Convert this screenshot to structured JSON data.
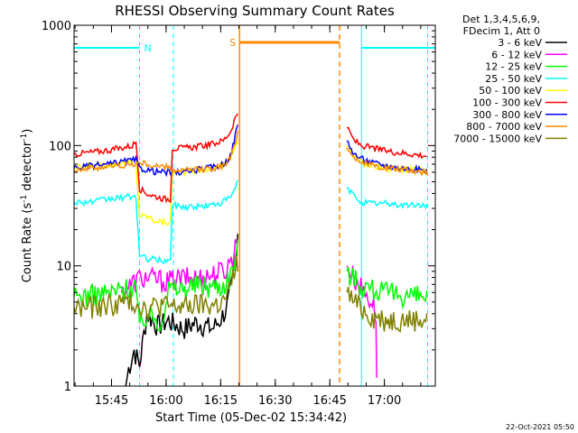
{
  "chart_data": {
    "type": "line",
    "title": "RHESSI Observing Summary Count Rates",
    "xlabel": "Start Time (05-Dec-02 15:34:42)",
    "ylabel_main": "Count Rate (s",
    "ylabel_sup1": "-1",
    "ylabel_mid": " detector",
    "ylabel_sup2": "-1",
    "ylabel_end": ")",
    "yscale": "log",
    "ylim": [
      1,
      1000
    ],
    "xlim_minutes": [
      0,
      99.3
    ],
    "x_ticks": [
      {
        "min": 10.3,
        "label": "15:45"
      },
      {
        "min": 25.3,
        "label": "16:00"
      },
      {
        "min": 40.3,
        "label": "16:15"
      },
      {
        "min": 55.3,
        "label": "16:30"
      },
      {
        "min": 70.3,
        "label": "16:45"
      },
      {
        "min": 85.3,
        "label": "17:00"
      }
    ],
    "y_ticks": [
      {
        "value": 1,
        "label": "1"
      },
      {
        "value": 10,
        "label": "10"
      },
      {
        "value": 100,
        "label": "100"
      },
      {
        "value": 1000,
        "label": "1000"
      }
    ],
    "header": [
      "Det 1,3,4,5,6,9,",
      "FDecim 1, Att 0"
    ],
    "attenuator_color": "#00ffff",
    "attenuator_segments": [
      {
        "x0": 0,
        "x1": 18.0,
        "y": 650,
        "label": "N"
      },
      {
        "x0": 79.0,
        "x1": 99.3,
        "y": 650,
        "label": ""
      }
    ],
    "attenuator_bounds": [
      0,
      18.0,
      27.3,
      79.0,
      97.2
    ],
    "saa_color": "#ff8c00",
    "saa_segment": {
      "x0": 45.5,
      "x1": 73.0,
      "y": 650,
      "label": "S"
    },
    "saa_bounds": [
      45.5,
      73.0
    ],
    "series": [
      {
        "name": "3 - 6 keV",
        "color": "#000000",
        "values": [
          [
            14.2,
            1
          ],
          [
            15,
            1.4
          ],
          [
            16.5,
            2.0
          ],
          [
            18,
            1.5
          ],
          [
            20,
            4
          ],
          [
            23,
            3.2
          ],
          [
            26,
            3.5
          ],
          [
            30,
            3.0
          ],
          [
            34,
            3.4
          ],
          [
            38,
            3.0
          ],
          [
            40,
            3.5
          ],
          [
            42,
            4.5
          ],
          [
            43,
            6
          ],
          [
            44,
            9
          ],
          [
            45,
            20
          ]
        ]
      },
      {
        "name": "6 - 12 keV",
        "color": "#ff00ff",
        "values": [
          [
            13,
            6
          ],
          [
            18,
            8
          ],
          [
            20,
            8
          ],
          [
            26,
            7.5
          ],
          [
            30,
            8
          ],
          [
            34,
            8
          ],
          [
            38,
            8.5
          ],
          [
            42,
            9.5
          ],
          [
            44,
            13
          ],
          [
            45,
            18
          ],
          [
            75,
            10
          ],
          [
            77,
            8
          ],
          [
            80,
            6
          ],
          [
            82,
            5
          ],
          [
            83,
            4
          ],
          [
            83.2,
            1
          ],
          [
            96,
            1
          ]
        ]
      },
      {
        "name": "12 - 25 keV",
        "color": "#00ff00",
        "values": [
          [
            0,
            5.5
          ],
          [
            5,
            5.8
          ],
          [
            10,
            6
          ],
          [
            14,
            6.5
          ],
          [
            17,
            7
          ],
          [
            18,
            3
          ],
          [
            20,
            4
          ],
          [
            24,
            3.5
          ],
          [
            26,
            6.5
          ],
          [
            30,
            6.5
          ],
          [
            34,
            7
          ],
          [
            38,
            6.8
          ],
          [
            41,
            7
          ],
          [
            43,
            8.5
          ],
          [
            44,
            11
          ],
          [
            45,
            14
          ],
          [
            75,
            9
          ],
          [
            77,
            8
          ],
          [
            79,
            7
          ],
          [
            82,
            6.5
          ],
          [
            86,
            6
          ],
          [
            90,
            5.8
          ],
          [
            97,
            5.5
          ]
        ]
      },
      {
        "name": "25 - 50 keV",
        "color": "#00ffff",
        "values": [
          [
            0,
            34
          ],
          [
            5,
            34
          ],
          [
            10,
            36
          ],
          [
            14,
            37
          ],
          [
            17,
            38
          ],
          [
            18,
            12
          ],
          [
            20,
            11.5
          ],
          [
            25,
            11
          ],
          [
            26.5,
            11
          ],
          [
            27,
            32
          ],
          [
            30,
            31
          ],
          [
            34,
            31
          ],
          [
            38,
            32
          ],
          [
            41,
            34
          ],
          [
            43,
            37
          ],
          [
            44,
            42
          ],
          [
            45,
            50
          ],
          [
            75,
            45
          ],
          [
            77,
            38
          ],
          [
            79,
            34
          ],
          [
            82,
            33
          ],
          [
            86,
            33
          ],
          [
            90,
            32
          ],
          [
            97,
            32
          ]
        ]
      },
      {
        "name": "50 - 100 keV",
        "color": "#ffff00",
        "values": [
          [
            0,
            65
          ],
          [
            5,
            67
          ],
          [
            10,
            70
          ],
          [
            14,
            72
          ],
          [
            17,
            74
          ],
          [
            18,
            26
          ],
          [
            20,
            26
          ],
          [
            22,
            24
          ],
          [
            25,
            23
          ],
          [
            26.5,
            23
          ],
          [
            27,
            60
          ],
          [
            30,
            60
          ],
          [
            34,
            62
          ],
          [
            38,
            65
          ],
          [
            41,
            70
          ],
          [
            43,
            80
          ],
          [
            44,
            95
          ],
          [
            45,
            115
          ],
          [
            75,
            100
          ],
          [
            77,
            80
          ],
          [
            79,
            72
          ],
          [
            82,
            68
          ],
          [
            86,
            65
          ],
          [
            90,
            64
          ],
          [
            97,
            62
          ]
        ]
      },
      {
        "name": "100 - 300 keV",
        "color": "#ff0000",
        "values": [
          [
            0,
            85
          ],
          [
            5,
            88
          ],
          [
            10,
            92
          ],
          [
            14,
            97
          ],
          [
            16,
            100
          ],
          [
            17,
            108
          ],
          [
            18,
            44
          ],
          [
            20,
            40
          ],
          [
            22,
            38
          ],
          [
            25,
            36
          ],
          [
            26.5,
            36
          ],
          [
            27,
            95
          ],
          [
            30,
            95
          ],
          [
            34,
            98
          ],
          [
            38,
            103
          ],
          [
            41,
            110
          ],
          [
            43,
            130
          ],
          [
            44,
            160
          ],
          [
            45,
            190
          ],
          [
            75,
            140
          ],
          [
            77,
            110
          ],
          [
            79,
            100
          ],
          [
            82,
            95
          ],
          [
            86,
            90
          ],
          [
            90,
            87
          ],
          [
            97,
            82
          ]
        ]
      },
      {
        "name": "300 - 800 keV",
        "color": "#0000ff",
        "values": [
          [
            0,
            65
          ],
          [
            5,
            68
          ],
          [
            10,
            70
          ],
          [
            14,
            74
          ],
          [
            17,
            76
          ],
          [
            18,
            65
          ],
          [
            20,
            63
          ],
          [
            22,
            61
          ],
          [
            25,
            60
          ],
          [
            26.5,
            60
          ],
          [
            27,
            60
          ],
          [
            30,
            60
          ],
          [
            34,
            63
          ],
          [
            38,
            66
          ],
          [
            41,
            70
          ],
          [
            43,
            82
          ],
          [
            44,
            110
          ],
          [
            45,
            150
          ],
          [
            75,
            110
          ],
          [
            77,
            85
          ],
          [
            79,
            78
          ],
          [
            82,
            72
          ],
          [
            86,
            68
          ],
          [
            90,
            65
          ],
          [
            97,
            62
          ]
        ]
      },
      {
        "name": "800 - 7000 keV",
        "color": "#ff8c00",
        "values": [
          [
            0,
            63
          ],
          [
            5,
            65
          ],
          [
            10,
            67
          ],
          [
            14,
            69
          ],
          [
            17,
            70
          ],
          [
            18,
            72
          ],
          [
            20,
            70
          ],
          [
            22,
            68
          ],
          [
            25,
            66
          ],
          [
            26.5,
            66
          ],
          [
            27,
            62
          ],
          [
            30,
            62
          ],
          [
            34,
            63
          ],
          [
            38,
            65
          ],
          [
            41,
            68
          ],
          [
            43,
            78
          ],
          [
            44,
            100
          ],
          [
            45,
            130
          ],
          [
            75,
            95
          ],
          [
            77,
            80
          ],
          [
            79,
            73
          ],
          [
            82,
            68
          ],
          [
            86,
            65
          ],
          [
            90,
            63
          ],
          [
            97,
            60
          ]
        ]
      },
      {
        "name": "7000 - 15000 keV",
        "color": "#808000",
        "values": [
          [
            0,
            4.5
          ],
          [
            5,
            4.6
          ],
          [
            10,
            4.8
          ],
          [
            14,
            5.0
          ],
          [
            17,
            5.0
          ],
          [
            18,
            4.8
          ],
          [
            20,
            4.5
          ],
          [
            24,
            4.8
          ],
          [
            26,
            4.6
          ],
          [
            30,
            4.6
          ],
          [
            34,
            4.8
          ],
          [
            38,
            4.7
          ],
          [
            41,
            5.0
          ],
          [
            43,
            6.5
          ],
          [
            44,
            9
          ],
          [
            45,
            11
          ],
          [
            75,
            6
          ],
          [
            77,
            5
          ],
          [
            79,
            4.5
          ],
          [
            82,
            3.8
          ],
          [
            86,
            3.6
          ],
          [
            90,
            3.6
          ],
          [
            97,
            3.6
          ]
        ]
      }
    ]
  },
  "footer": {
    "timestamp": "22-Oct-2021 05:50"
  }
}
